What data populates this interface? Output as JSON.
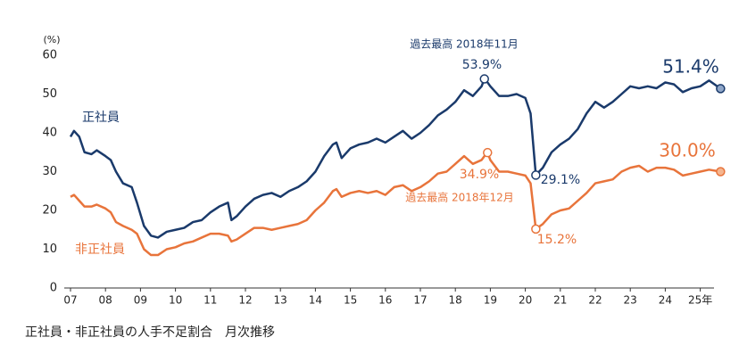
{
  "chart_data": {
    "type": "line",
    "y_label": "(%)",
    "caption": "正社員・非正社員の人手不足割合　月次推移",
    "annotations": [
      "過去最高 2018年11月",
      "過去最高 2018年12月"
    ],
    "x": [
      2007.0,
      2007.1,
      2007.25,
      2007.4,
      2007.6,
      2007.75,
      2008.0,
      2008.15,
      2008.3,
      2008.5,
      2008.75,
      2008.9,
      2009.1,
      2009.3,
      2009.5,
      2009.75,
      2010.0,
      2010.25,
      2010.5,
      2010.75,
      2011.0,
      2011.25,
      2011.5,
      2011.6,
      2011.75,
      2012.0,
      2012.25,
      2012.5,
      2012.75,
      2013.0,
      2013.25,
      2013.5,
      2013.75,
      2014.0,
      2014.25,
      2014.5,
      2014.6,
      2014.75,
      2015.0,
      2015.25,
      2015.5,
      2015.75,
      2016.0,
      2016.25,
      2016.5,
      2016.75,
      2017.0,
      2017.25,
      2017.5,
      2017.75,
      2018.0,
      2018.25,
      2018.5,
      2018.75,
      2018.83,
      2018.92,
      2019.0,
      2019.25,
      2019.5,
      2019.75,
      2020.0,
      2020.15,
      2020.3,
      2020.5,
      2020.75,
      2021.0,
      2021.25,
      2021.5,
      2021.75,
      2022.0,
      2022.25,
      2022.5,
      2022.75,
      2023.0,
      2023.25,
      2023.5,
      2023.75,
      2024.0,
      2024.25,
      2024.5,
      2024.75,
      2025.0,
      2025.25,
      2025.58
    ],
    "series": [
      {
        "name": "正社員",
        "color": "#1a3a6b",
        "values": [
          39,
          40.5,
          39,
          35,
          34.5,
          35.5,
          34,
          33,
          30,
          27,
          26,
          22,
          16,
          13.5,
          13,
          14.5,
          15,
          15.5,
          17,
          17.5,
          19.5,
          21,
          22,
          17.5,
          18.5,
          21,
          23,
          24,
          24.5,
          23.5,
          25,
          26,
          27.5,
          30,
          34,
          37,
          37.5,
          33.5,
          36,
          37,
          37.5,
          38.5,
          37.5,
          39,
          40.5,
          38.5,
          40,
          42,
          44.5,
          46,
          48,
          51,
          49.5,
          52,
          53.9,
          53,
          52,
          49.5,
          49.5,
          50,
          49,
          45,
          29.1,
          31,
          35,
          37,
          38.5,
          41,
          45,
          48,
          46.5,
          48,
          50,
          52,
          51.5,
          52,
          51.5,
          53,
          52.5,
          50.5,
          51.5,
          52,
          53.5,
          51.4
        ],
        "value_labels": [
          null,
          null,
          null,
          null,
          null,
          null,
          null,
          null,
          null,
          null,
          null,
          null,
          null,
          null,
          null,
          null,
          null,
          null,
          null,
          null,
          null,
          null,
          null,
          null,
          null,
          null,
          null,
          null,
          null,
          null,
          null,
          null,
          null,
          null,
          null,
          null,
          null,
          null,
          null,
          null,
          null,
          null,
          null,
          null,
          null,
          null,
          null,
          null,
          null,
          null,
          null,
          null,
          null,
          null,
          "53.9%",
          null,
          null,
          null,
          null,
          null,
          null,
          null,
          "29.1%",
          null,
          null,
          null,
          null,
          null,
          null,
          null,
          null,
          null,
          null,
          null,
          null,
          null,
          null,
          null,
          null,
          null,
          null,
          null,
          null,
          "51.4%"
        ]
      },
      {
        "name": "非正社員",
        "color": "#e8743b",
        "values": [
          23.5,
          24,
          22.5,
          21,
          21,
          21.5,
          20.5,
          19.5,
          17,
          16,
          15,
          14,
          10,
          8.5,
          8.5,
          10,
          10.5,
          11.5,
          12,
          13,
          14,
          14,
          13.5,
          12,
          12.5,
          14,
          15.5,
          15.5,
          15,
          15.5,
          16,
          16.5,
          17.5,
          20,
          22,
          25,
          25.5,
          23.5,
          24.5,
          25,
          24.5,
          25,
          24,
          26,
          26.5,
          25,
          26,
          27.5,
          29.5,
          30,
          32,
          34,
          32,
          33,
          34,
          34.9,
          33,
          30,
          30,
          29.5,
          29,
          27,
          15.2,
          16.5,
          19,
          20,
          20.5,
          22.5,
          24.5,
          27,
          27.5,
          28,
          30,
          31,
          31.5,
          30,
          31,
          31,
          30.5,
          29,
          29.5,
          30,
          30.5,
          30.0
        ],
        "value_labels": [
          null,
          null,
          null,
          null,
          null,
          null,
          null,
          null,
          null,
          null,
          null,
          null,
          null,
          null,
          null,
          null,
          null,
          null,
          null,
          null,
          null,
          null,
          null,
          null,
          null,
          null,
          null,
          null,
          null,
          null,
          null,
          null,
          null,
          null,
          null,
          null,
          null,
          null,
          null,
          null,
          null,
          null,
          null,
          null,
          null,
          null,
          null,
          null,
          null,
          null,
          null,
          null,
          null,
          null,
          null,
          "34.9%",
          null,
          null,
          null,
          null,
          null,
          null,
          "15.2%",
          null,
          null,
          null,
          null,
          null,
          null,
          null,
          null,
          null,
          null,
          null,
          null,
          null,
          null,
          null,
          null,
          null,
          null,
          null,
          null,
          "30.0%"
        ]
      }
    ],
    "xlim": [
      2007,
      2025.75
    ],
    "xticks": [
      {
        "value": 2007,
        "label": "07"
      },
      {
        "value": 2008,
        "label": "08"
      },
      {
        "value": 2009,
        "label": "09"
      },
      {
        "value": 2010,
        "label": "10"
      },
      {
        "value": 2011,
        "label": "11"
      },
      {
        "value": 2012,
        "label": "12"
      },
      {
        "value": 2013,
        "label": "13"
      },
      {
        "value": 2014,
        "label": "14"
      },
      {
        "value": 2015,
        "label": "15"
      },
      {
        "value": 2016,
        "label": "16"
      },
      {
        "value": 2017,
        "label": "17"
      },
      {
        "value": 2018,
        "label": "18"
      },
      {
        "value": 2019,
        "label": "19"
      },
      {
        "value": 2020,
        "label": "20"
      },
      {
        "value": 2021,
        "label": "21"
      },
      {
        "value": 2022,
        "label": "22"
      },
      {
        "value": 2023,
        "label": "23"
      },
      {
        "value": 2024,
        "label": "24"
      },
      {
        "value": 2025,
        "label": "25年"
      }
    ],
    "ylim": [
      0,
      60
    ],
    "yticks": [
      0,
      10,
      20,
      30,
      40,
      50,
      60
    ],
    "grid": false
  }
}
